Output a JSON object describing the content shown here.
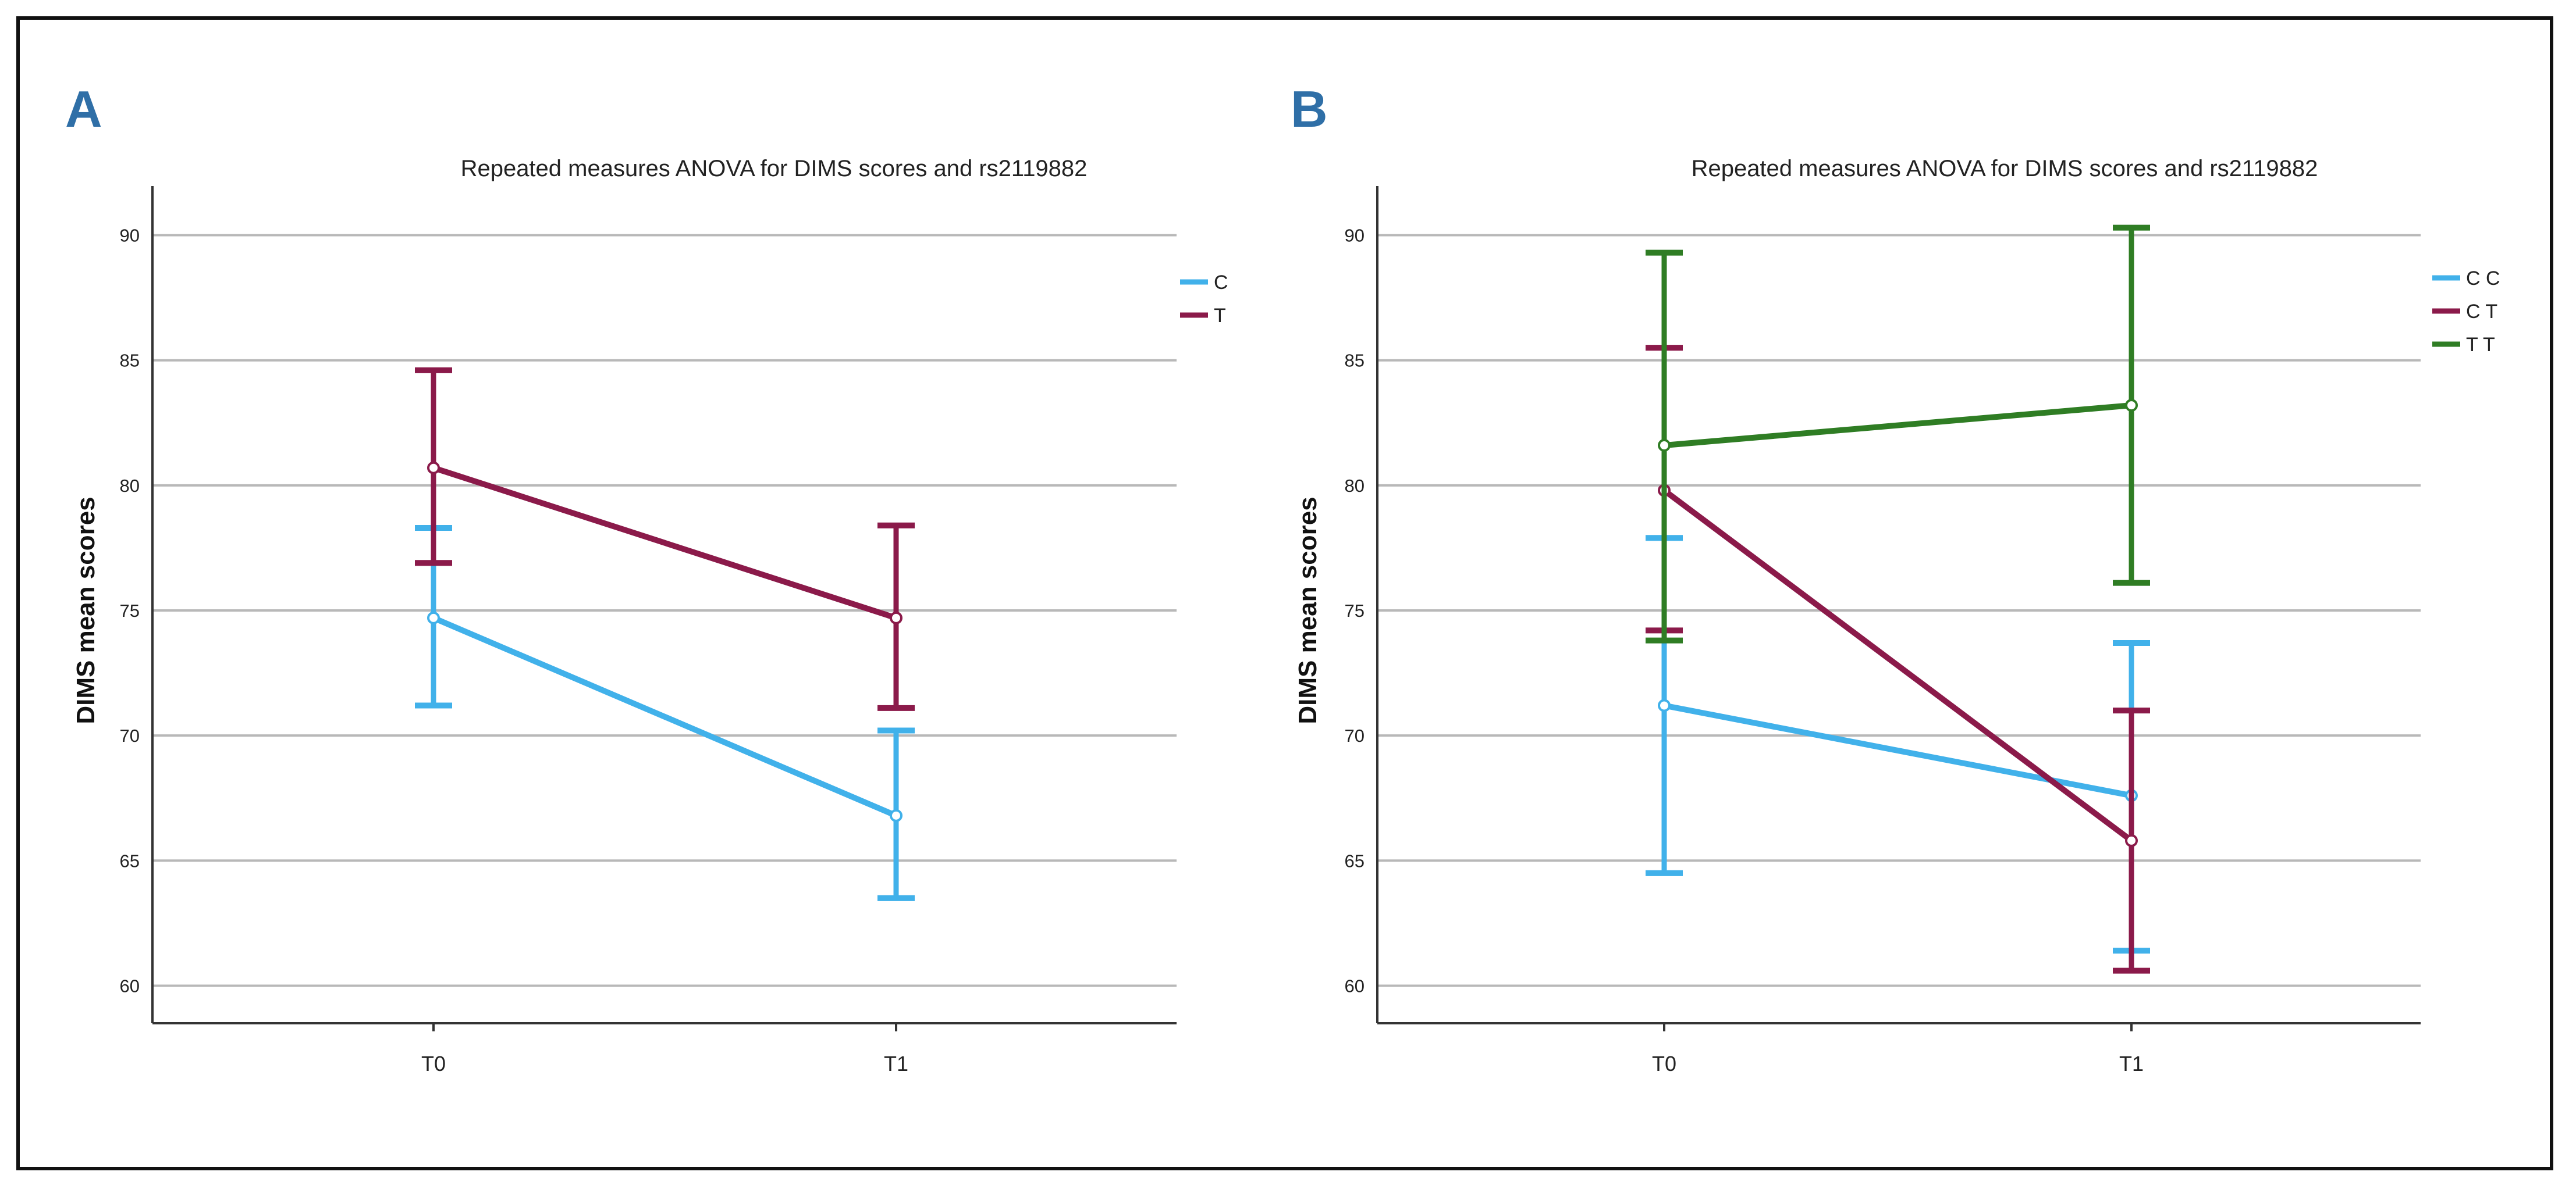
{
  "colors": {
    "panel_letter": "#2f6fa7",
    "grid": "#b8b8b8",
    "axis": "#333333"
  },
  "chart_data": [
    {
      "panel": "A",
      "type": "line",
      "title": "Repeated measures ANOVA for DIMS scores and rs2119882",
      "xlabel": "",
      "ylabel": "DIMS mean scores",
      "categories": [
        "T0",
        "T1"
      ],
      "ylim": [
        58.5,
        91.5
      ],
      "yticks": [
        60,
        65,
        70,
        75,
        80,
        85,
        90
      ],
      "grid": true,
      "legend_position": "top-right",
      "series": [
        {
          "name": "C",
          "color": "#41b1ea",
          "values": [
            74.7,
            66.8
          ],
          "ci_low": [
            71.2,
            63.5
          ],
          "ci_high": [
            78.3,
            70.2
          ]
        },
        {
          "name": "T",
          "color": "#8b1a4a",
          "values": [
            80.7,
            74.7
          ],
          "ci_low": [
            76.9,
            71.1
          ],
          "ci_high": [
            84.6,
            78.4
          ]
        }
      ]
    },
    {
      "panel": "B",
      "type": "line",
      "title": "Repeated measures ANOVA for DIMS scores and rs2119882",
      "xlabel": "",
      "ylabel": "DIMS mean scores",
      "categories": [
        "T0",
        "T1"
      ],
      "ylim": [
        58.5,
        91.5
      ],
      "yticks": [
        60,
        65,
        70,
        75,
        80,
        85,
        90
      ],
      "grid": true,
      "legend_position": "top-right",
      "series": [
        {
          "name": "C C",
          "color": "#41b1ea",
          "values": [
            71.2,
            67.6
          ],
          "ci_low": [
            64.5,
            61.4
          ],
          "ci_high": [
            77.9,
            73.7
          ]
        },
        {
          "name": "C T",
          "color": "#8b1a4a",
          "values": [
            79.8,
            65.8
          ],
          "ci_low": [
            74.2,
            60.6
          ],
          "ci_high": [
            85.5,
            71.0
          ]
        },
        {
          "name": "T T",
          "color": "#2f7d24",
          "values": [
            81.6,
            83.2
          ],
          "ci_low": [
            73.8,
            76.1
          ],
          "ci_high": [
            89.3,
            90.3
          ]
        }
      ]
    }
  ]
}
